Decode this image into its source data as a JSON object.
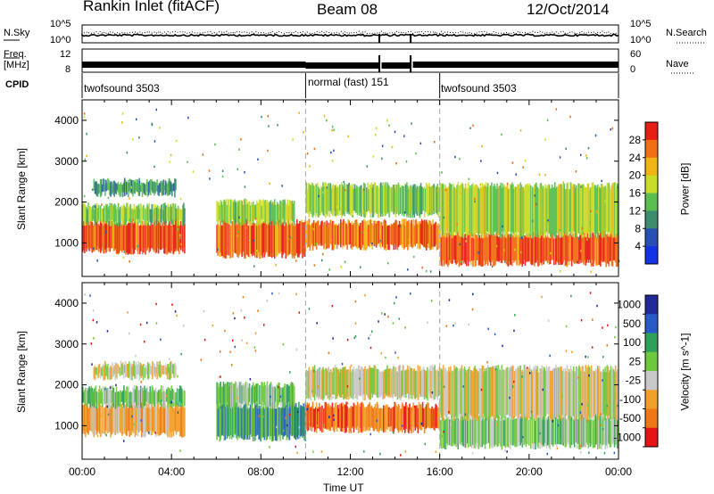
{
  "header": {
    "site": "Rankin Inlet (fitACF)",
    "beam": "Beam 08",
    "date": "12/Oct/2014"
  },
  "top_panels": {
    "nsky_label": "N.Sky",
    "nsearch_label": "N.Search",
    "noise_ticks_left": [
      "10^5",
      "10^0"
    ],
    "noise_ticks_right": [
      "10^5",
      "10^0"
    ],
    "freq_label_1": "Freq.",
    "freq_label_2": "[MHz]",
    "freq_ticks": [
      "12",
      "8"
    ],
    "nave_ticks": [
      "60",
      "0"
    ],
    "nave_label": "Nave",
    "cpid_label": "CPID",
    "cpid_segments": [
      {
        "label": "twofsound 3503",
        "start_h": 0,
        "end_h": 10
      },
      {
        "label": "normal (fast) 151",
        "start_h": 10,
        "end_h": 16
      },
      {
        "label": "twofsound 3503",
        "start_h": 16,
        "end_h": 24
      }
    ]
  },
  "chart_data": [
    {
      "type": "heatmap",
      "title": "",
      "xlabel": "Time UT",
      "ylabel": "Slant Range [km]",
      "xlim": [
        0,
        24
      ],
      "ylim": [
        180,
        4500
      ],
      "x_ticks": [
        "00:00",
        "04:00",
        "08:00",
        "12:00",
        "16:00",
        "20:00",
        "00:00"
      ],
      "y_ticks": [
        1000,
        2000,
        3000,
        4000
      ],
      "colorbar": {
        "label": "Power [dB]",
        "ticks": [
          4,
          8,
          12,
          16,
          20,
          24,
          28
        ],
        "range": [
          0,
          30
        ],
        "colors": [
          "#1432e6",
          "#2850b4",
          "#3c8c6e",
          "#5abe50",
          "#c8dc28",
          "#f0b414",
          "#f06e14",
          "#e61e14"
        ]
      },
      "echo_bands": [
        {
          "start_h": 0.0,
          "end_h": 4.6,
          "r_lo": 800,
          "r_hi": 1500,
          "level": 26
        },
        {
          "start_h": 0.0,
          "end_h": 4.6,
          "r_lo": 1500,
          "r_hi": 1900,
          "level": 14
        },
        {
          "start_h": 0.5,
          "end_h": 4.2,
          "r_lo": 2200,
          "r_hi": 2500,
          "level": 10
        },
        {
          "start_h": 6.0,
          "end_h": 10.0,
          "r_lo": 700,
          "r_hi": 1500,
          "level": 25
        },
        {
          "start_h": 6.0,
          "end_h": 9.5,
          "r_lo": 1500,
          "r_hi": 2000,
          "level": 15
        },
        {
          "start_h": 10.0,
          "end_h": 16.0,
          "r_lo": 900,
          "r_hi": 1500,
          "level": 24
        },
        {
          "start_h": 10.0,
          "end_h": 16.0,
          "r_lo": 1700,
          "r_hi": 2400,
          "level": 14
        },
        {
          "start_h": 16.0,
          "end_h": 24.0,
          "r_lo": 500,
          "r_hi": 1200,
          "level": 26
        },
        {
          "start_h": 16.0,
          "end_h": 24.0,
          "r_lo": 1200,
          "r_hi": 2400,
          "level": 16
        }
      ]
    },
    {
      "type": "heatmap",
      "title": "",
      "xlabel": "Time UT",
      "ylabel": "Slant Range [km]",
      "xlim": [
        0,
        24
      ],
      "ylim": [
        180,
        4500
      ],
      "x_ticks": [
        "00:00",
        "04:00",
        "08:00",
        "12:00",
        "16:00",
        "20:00",
        "00:00"
      ],
      "y_ticks": [
        1000,
        2000,
        3000,
        4000
      ],
      "colorbar": {
        "label": "Velocity [m s^-1]",
        "ticks": [
          "1000",
          "500",
          "100",
          "25",
          "-25",
          "-100",
          "-500",
          "-1000"
        ],
        "colors": [
          "#1e2896",
          "#285ac8",
          "#2ea05a",
          "#6ec83c",
          "#c8c8c8",
          "#f0a028",
          "#f07814",
          "#e61414"
        ]
      },
      "echo_bands": [
        {
          "start_h": 0.0,
          "end_h": 4.6,
          "r_lo": 800,
          "r_hi": 1500,
          "level": 5
        },
        {
          "start_h": 0.0,
          "end_h": 4.6,
          "r_lo": 1500,
          "r_hi": 1900,
          "level": 3
        },
        {
          "start_h": 0.5,
          "end_h": 4.2,
          "r_lo": 2200,
          "r_hi": 2500,
          "level": 4
        },
        {
          "start_h": 6.0,
          "end_h": 10.0,
          "r_lo": 700,
          "r_hi": 1500,
          "level": 2
        },
        {
          "start_h": 6.0,
          "end_h": 9.5,
          "r_lo": 1500,
          "r_hi": 2000,
          "level": 3
        },
        {
          "start_h": 10.0,
          "end_h": 16.0,
          "r_lo": 900,
          "r_hi": 1500,
          "level": 6
        },
        {
          "start_h": 10.0,
          "end_h": 16.0,
          "r_lo": 1700,
          "r_hi": 2400,
          "level": 4
        },
        {
          "start_h": 16.0,
          "end_h": 24.0,
          "r_lo": 500,
          "r_hi": 1200,
          "level": 3
        },
        {
          "start_h": 16.0,
          "end_h": 24.0,
          "r_lo": 1200,
          "r_hi": 2400,
          "level": 4
        }
      ]
    }
  ]
}
